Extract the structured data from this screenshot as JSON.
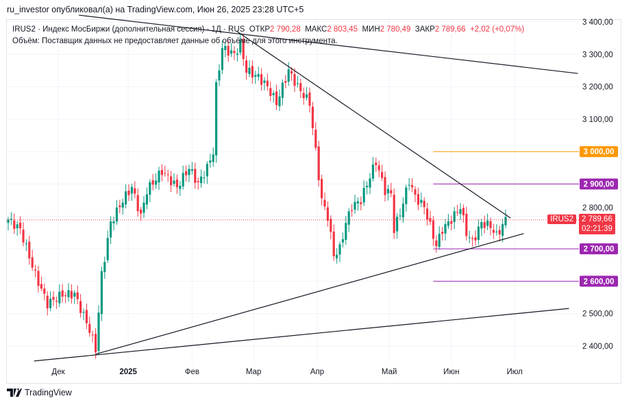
{
  "header": {
    "published": "ru_investor опубликовал(а) на TradingView.com, Июн 26, 2025 23:28 UTC+5"
  },
  "legend": {
    "symbol_line": "IRUS2 · Индекс МосБиржи (дополнительная сессия) · 1Д · RUS",
    "open_label": "ОТКР",
    "open": "2 790,28",
    "high_label": "МАКС",
    "high": "2 803,45",
    "low_label": "МИН",
    "low": "2 780,49",
    "close_label": "ЗАКР",
    "close": "2 789,66",
    "change": "+2,02 (+0,07%)",
    "volume_note": "Объём: Поставщик данных не предоставляет данные об объёме для этого инструмента."
  },
  "price_labels": {
    "symbol": "IRUS2",
    "last": "2 789,66",
    "countdown": "02:21:39",
    "hidden": "2 800,00"
  },
  "footer": {
    "brand": "TradingView"
  },
  "colors": {
    "up": "#089981",
    "down": "#f23645",
    "orange": "#ff9800",
    "purple": "#9c27b0"
  },
  "chart_data": {
    "type": "candlestick",
    "ylim": [
      2350,
      3420
    ],
    "y_ticks": [
      {
        "v": 3400,
        "t": "3 400,00"
      },
      {
        "v": 3300,
        "t": "3 300,00"
      },
      {
        "v": 3200,
        "t": "3 200,00"
      },
      {
        "v": 3100,
        "t": "3 100,00"
      },
      {
        "v": 3000,
        "t": "3 000,00"
      },
      {
        "v": 2900,
        "t": "2 900,00"
      },
      {
        "v": 2800,
        "t": "2 800,00"
      },
      {
        "v": 2700,
        "t": "2 700,00"
      },
      {
        "v": 2600,
        "t": "2 600,00"
      },
      {
        "v": 2500,
        "t": "2 500,00"
      },
      {
        "v": 2400,
        "t": "2 400,00"
      }
    ],
    "x_ticks": [
      {
        "i": 16.6,
        "t": "Дек"
      },
      {
        "i": 39.8,
        "t": "2025",
        "bold": true
      },
      {
        "i": 61,
        "t": "Фев"
      },
      {
        "i": 81.4,
        "t": "Мар"
      },
      {
        "i": 102.5,
        "t": "Апр"
      },
      {
        "i": 126.4,
        "t": "Май"
      },
      {
        "i": 147,
        "t": "Июн"
      },
      {
        "i": 168,
        "t": "Июл"
      }
    ],
    "close_path": [
      [
        0,
        2790
      ],
      [
        4,
        2760
      ],
      [
        9,
        2620
      ],
      [
        13,
        2530
      ],
      [
        18,
        2560
      ],
      [
        22,
        2560
      ],
      [
        27,
        2450
      ],
      [
        29,
        2390
      ],
      [
        31,
        2620
      ],
      [
        34,
        2780
      ],
      [
        38,
        2850
      ],
      [
        41,
        2890
      ],
      [
        44,
        2800
      ],
      [
        46,
        2880
      ],
      [
        51,
        2940
      ],
      [
        56,
        2890
      ],
      [
        60,
        2950
      ],
      [
        63,
        2900
      ],
      [
        66,
        2950
      ],
      [
        68,
        3000
      ],
      [
        69,
        3200
      ],
      [
        71,
        3320
      ],
      [
        75,
        3300
      ],
      [
        77,
        3330
      ],
      [
        79,
        3250
      ],
      [
        83,
        3230
      ],
      [
        86,
        3200
      ],
      [
        89,
        3150
      ],
      [
        93,
        3250
      ],
      [
        96,
        3200
      ],
      [
        100,
        3150
      ],
      [
        102,
        3000
      ],
      [
        104,
        2850
      ],
      [
        106,
        2800
      ],
      [
        108,
        2680
      ],
      [
        110,
        2700
      ],
      [
        112,
        2780
      ],
      [
        114,
        2830
      ],
      [
        117,
        2850
      ],
      [
        119,
        2900
      ],
      [
        122,
        2970
      ],
      [
        125,
        2880
      ],
      [
        127,
        2870
      ],
      [
        128,
        2760
      ],
      [
        130,
        2810
      ],
      [
        133,
        2910
      ],
      [
        135,
        2860
      ],
      [
        138,
        2830
      ],
      [
        142,
        2710
      ],
      [
        144,
        2760
      ],
      [
        147,
        2790
      ],
      [
        150,
        2830
      ],
      [
        152,
        2750
      ],
      [
        154,
        2720
      ],
      [
        157,
        2780
      ],
      [
        160,
        2770
      ],
      [
        162,
        2740
      ],
      [
        165,
        2790
      ]
    ],
    "levels": [
      {
        "name": "level-3000",
        "price": 3000,
        "label": "3 000,00",
        "color": "#ff9800"
      },
      {
        "name": "level-2900",
        "price": 2900,
        "label": "2 900,00",
        "color": "#9c27b0"
      },
      {
        "name": "level-2700",
        "price": 2700,
        "label": "2 700,00",
        "color": "#9c27b0"
      },
      {
        "name": "level-2600",
        "price": 2600,
        "label": "2 600,00",
        "color": "#9c27b0"
      }
    ],
    "level_start_index": 141,
    "trendlines": [
      {
        "name": "upper-long-trendline",
        "a": [
          23.4,
          3421
        ],
        "b": [
          189,
          3241
        ]
      },
      {
        "name": "triangle-upper-trendline",
        "a": [
          75.7,
          3372
        ],
        "b": [
          166.6,
          2795
        ]
      },
      {
        "name": "triangle-lower-trendline",
        "a": [
          29,
          2375
        ],
        "b": [
          171,
          2747
        ]
      },
      {
        "name": "bottom-long-trendline",
        "a": [
          8.6,
          2354
        ],
        "b": [
          186,
          2516
        ]
      }
    ],
    "last_price": 2789.66
  }
}
